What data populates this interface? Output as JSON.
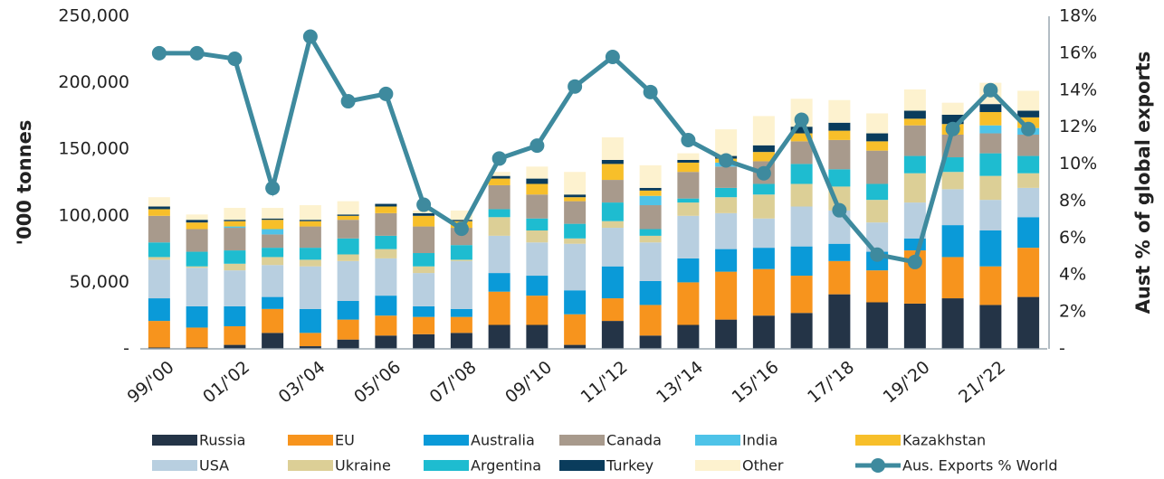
{
  "chart_data": {
    "type": "bar",
    "stacked": true,
    "categories": [
      "99/'00",
      null,
      "01/'02",
      null,
      "03/'04",
      null,
      "05/'06",
      null,
      "07/'08",
      null,
      "09/'10",
      null,
      "11/'12",
      null,
      "13/'14",
      null,
      "15/'16",
      null,
      "17/'18",
      null,
      "19/'20",
      null,
      "21/'22",
      null
    ],
    "ylabel": "'000 tonnes",
    "y2label": "Aust % of global exports",
    "ylim": [
      0,
      250000
    ],
    "yticks": [
      {
        "value": 0,
        "label": "-"
      },
      {
        "value": 50000,
        "label": "50,000"
      },
      {
        "value": 100000,
        "label": "100,000"
      },
      {
        "value": 150000,
        "label": "150,000"
      },
      {
        "value": 200000,
        "label": "200,000"
      },
      {
        "value": 250000,
        "label": "250,000"
      }
    ],
    "y2lim": [
      0,
      18
    ],
    "y2ticks": [
      {
        "value": 0,
        "label": "-"
      },
      {
        "value": 2,
        "label": "2%"
      },
      {
        "value": 4,
        "label": "4%"
      },
      {
        "value": 6,
        "label": "6%"
      },
      {
        "value": 8,
        "label": "8%"
      },
      {
        "value": 10,
        "label": "10%"
      },
      {
        "value": 12,
        "label": "12%"
      },
      {
        "value": 14,
        "label": "14%"
      },
      {
        "value": 16,
        "label": "16%"
      },
      {
        "value": 18,
        "label": "18%"
      }
    ],
    "series": [
      {
        "name": "Russia",
        "color": "#243447",
        "values": [
          1000,
          1000,
          3000,
          12000,
          2000,
          7000,
          10000,
          11000,
          12000,
          18000,
          18000,
          3000,
          21000,
          10000,
          18000,
          22000,
          25000,
          27000,
          41000,
          35000,
          34000,
          38000,
          33000,
          39000
        ]
      },
      {
        "name": "EU",
        "color": "#f7941d",
        "values": [
          20000,
          15000,
          14000,
          18000,
          10000,
          15000,
          15000,
          13000,
          12000,
          25000,
          22000,
          23000,
          17000,
          23000,
          32000,
          36000,
          35000,
          28000,
          25000,
          24000,
          40000,
          31000,
          29000,
          37000
        ]
      },
      {
        "name": "Australia",
        "color": "#0a9ad8",
        "values": [
          17000,
          16000,
          15000,
          9000,
          18000,
          14000,
          15000,
          8000,
          6000,
          14000,
          15000,
          18000,
          24000,
          18000,
          18000,
          17000,
          16000,
          22000,
          13000,
          14000,
          9000,
          24000,
          27000,
          23000
        ]
      },
      {
        "name": "Canada",
        "color": "#a89a8c",
        "values": [
          20000,
          17000,
          17000,
          10000,
          16000,
          14000,
          17000,
          20000,
          13000,
          18000,
          18000,
          17000,
          17000,
          18000,
          20000,
          16000,
          17000,
          17000,
          22000,
          25000,
          23000,
          17000,
          15000,
          16000
        ]
      },
      {
        "name": "India",
        "color": "#4ec3e8",
        "values": [
          0,
          0,
          1000,
          4000,
          0,
          0,
          0,
          0,
          0,
          0,
          0,
          0,
          0,
          7000,
          0,
          3000,
          0,
          0,
          0,
          0,
          0,
          0,
          6000,
          5000
        ]
      },
      {
        "name": "Kazakhstan",
        "color": "#f7bf2a",
        "values": [
          5000,
          5000,
          4000,
          7000,
          4000,
          3000,
          5000,
          8000,
          5000,
          5000,
          8000,
          3000,
          12000,
          4000,
          7000,
          3000,
          7000,
          6000,
          7000,
          7000,
          5000,
          8000,
          10000,
          8000
        ]
      },
      {
        "name": "USA",
        "color": "#b8cfe0",
        "values": [
          29000,
          29000,
          27000,
          24000,
          32000,
          30000,
          28000,
          25000,
          36000,
          28000,
          25000,
          35000,
          29000,
          29000,
          32000,
          27000,
          22000,
          30000,
          25000,
          22000,
          27000,
          27000,
          23000,
          22000
        ]
      },
      {
        "name": "Ukraine",
        "color": "#dccf96",
        "values": [
          2000,
          1000,
          5000,
          6000,
          5000,
          5000,
          7000,
          5000,
          1000,
          14000,
          9000,
          4000,
          5000,
          5000,
          10000,
          12000,
          18000,
          17000,
          18000,
          17000,
          22000,
          13000,
          18000,
          11000
        ]
      },
      {
        "name": "Argentina",
        "color": "#1ebcd0",
        "values": [
          11000,
          11000,
          10000,
          7000,
          9000,
          12000,
          10000,
          10000,
          11000,
          6000,
          9000,
          11000,
          14000,
          5000,
          3000,
          7000,
          8000,
          15000,
          13000,
          12000,
          13000,
          11000,
          17000,
          13000
        ]
      },
      {
        "name": "Turkey",
        "color": "#0a3c5c",
        "values": [
          2000,
          2000,
          1000,
          1000,
          1000,
          1000,
          2000,
          2000,
          1000,
          2000,
          4000,
          2000,
          3000,
          2000,
          2000,
          2000,
          5000,
          5000,
          6000,
          6000,
          6000,
          7000,
          6000,
          5000
        ]
      },
      {
        "name": "Other",
        "color": "#fdf2cf",
        "values": [
          7000,
          4000,
          9000,
          8000,
          11000,
          10000,
          0,
          2000,
          7000,
          3000,
          9000,
          17000,
          17000,
          17000,
          5000,
          20000,
          22000,
          21000,
          17000,
          15000,
          16000,
          9000,
          16000,
          15000
        ]
      },
      {
        "name": "Aus. Exports % World",
        "color": "#3e8a9e",
        "type": "line",
        "axis": "y2",
        "values": [
          16,
          16,
          15.7,
          8.7,
          16.9,
          13.4,
          13.8,
          7.8,
          6.5,
          10.3,
          11,
          14.2,
          15.8,
          13.9,
          11.3,
          10.2,
          9.5,
          12.4,
          7.5,
          5.1,
          4.7,
          11.9,
          14,
          11.9
        ]
      }
    ]
  }
}
